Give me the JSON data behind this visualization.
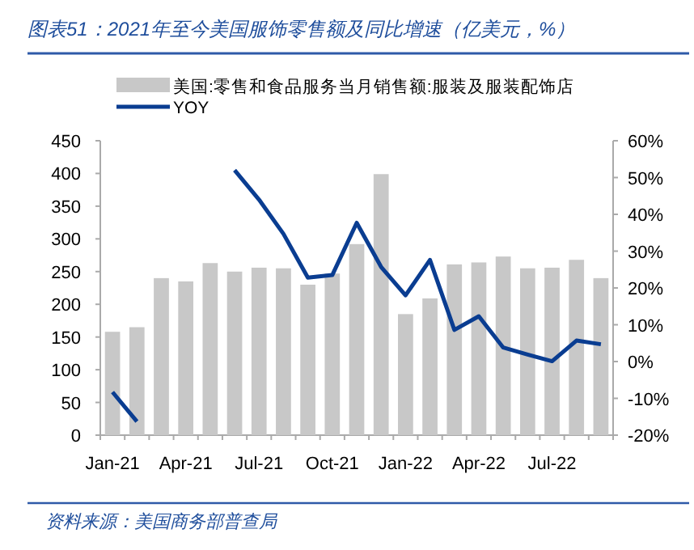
{
  "chart_data": {
    "type": "bar",
    "title": "图表51：2021年至今美国服饰零售额及同比增速（亿美元，%）",
    "annotations": [
      "资料来源：美国商务部普查局"
    ],
    "categories": [
      "Jan-21",
      null,
      null,
      "Apr-21",
      null,
      null,
      "Jul-21",
      null,
      null,
      "Oct-21",
      null,
      null,
      "Jan-22",
      null,
      null,
      "Apr-22",
      null,
      null,
      "Jul-22",
      null,
      null
    ],
    "series": [
      {
        "name": "美国:零售和食品服务当月销售额:服装及服装配饰店",
        "color": "#c8c8c8",
        "values": [
          158,
          165,
          240,
          235,
          263,
          250,
          256,
          255,
          230,
          247,
          292,
          399,
          185,
          209,
          261,
          264,
          273,
          255,
          256,
          268,
          240
        ]
      },
      {
        "name": "YOY",
        "type": "line",
        "axis": "y2",
        "color": "#0a3d91",
        "values": [
          -8.3,
          -16.3,
          null,
          null,
          null,
          52,
          44,
          34.7,
          22.8,
          23.5,
          37.7,
          25.7,
          18,
          27.6,
          8.6,
          12.3,
          3.8,
          1.9,
          0.1,
          5.7,
          4.7
        ]
      }
    ],
    "ylim": [
      0,
      450
    ],
    "yticks": [
      0,
      50,
      100,
      150,
      200,
      250,
      300,
      350,
      400,
      450
    ],
    "y2lim": [
      -20,
      60
    ],
    "y2ticks": [
      {
        "value": -20,
        "label": "-20%"
      },
      {
        "value": -10,
        "label": "-10%"
      },
      {
        "value": 0,
        "label": "0%"
      },
      {
        "value": 10,
        "label": "10%"
      },
      {
        "value": 20,
        "label": "20%"
      },
      {
        "value": 30,
        "label": "30%"
      },
      {
        "value": 40,
        "label": "40%"
      },
      {
        "value": 50,
        "label": "50%"
      },
      {
        "value": 60,
        "label": "60%"
      }
    ],
    "legend": "top"
  }
}
